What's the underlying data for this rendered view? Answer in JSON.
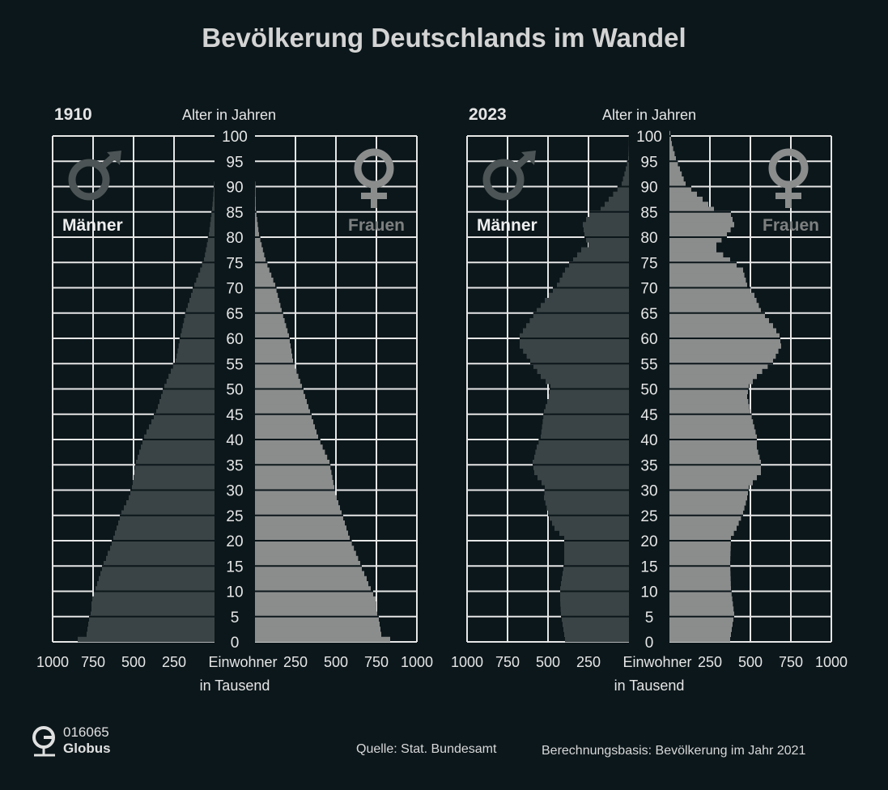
{
  "title": "Bevölkerung Deutschlands im Wandel",
  "footer": {
    "logo_code": "016065",
    "logo_name": "Globus",
    "source": "Quelle: Stat. Bundesamt",
    "basis": "Berechnungsbasis: Bevölkerung im Jahr 2021"
  },
  "colors": {
    "background": "#0c171b",
    "men": "#3a4446",
    "women": "#8b8d8d",
    "grid": "#e6e6e6"
  },
  "chart_data": [
    {
      "type": "bar",
      "orientation": "population-pyramid",
      "title": "1910",
      "ylabel": "Alter in Jahren",
      "xlabel": "Einwohner in Tausend",
      "xlabel_line1": "Einwohner",
      "xlabel_line2": "in Tausend",
      "xlim": [
        0,
        1000
      ],
      "ylim": [
        0,
        100
      ],
      "x_ticks_men": [
        "1000",
        "750",
        "500",
        "250"
      ],
      "x_ticks_women": [
        "250",
        "500",
        "750",
        "1000"
      ],
      "y_ticks": [
        "0",
        "5",
        "10",
        "15",
        "20",
        "25",
        "30",
        "35",
        "40",
        "45",
        "50",
        "55",
        "60",
        "65",
        "70",
        "75",
        "80",
        "85",
        "90",
        "95",
        "100"
      ],
      "grid": true,
      "series": [
        {
          "name": "Männer",
          "icon": "male-symbol-icon",
          "values": [
            845,
            790,
            785,
            780,
            775,
            765,
            760,
            760,
            755,
            745,
            735,
            725,
            715,
            705,
            695,
            685,
            670,
            660,
            645,
            635,
            625,
            615,
            605,
            595,
            585,
            575,
            560,
            545,
            530,
            520,
            510,
            505,
            500,
            495,
            490,
            485,
            475,
            465,
            455,
            445,
            435,
            420,
            405,
            390,
            375,
            360,
            350,
            340,
            330,
            320,
            310,
            296,
            284,
            270,
            256,
            240,
            234,
            228,
            222,
            216,
            210,
            203,
            196,
            189,
            182,
            175,
            165,
            155,
            145,
            135,
            125,
            113,
            101,
            89,
            77,
            65,
            59,
            53,
            47,
            41,
            35,
            31,
            27,
            23,
            19,
            15,
            12,
            9,
            7,
            5,
            3,
            0,
            0,
            0,
            0,
            0,
            0,
            0,
            0,
            0,
            0
          ]
        },
        {
          "name": "Frauen",
          "icon": "female-symbol-icon",
          "values": [
            835,
            780,
            775,
            770,
            765,
            755,
            750,
            750,
            745,
            730,
            715,
            700,
            690,
            675,
            660,
            650,
            637,
            624,
            611,
            598,
            585,
            575,
            565,
            555,
            545,
            535,
            525,
            515,
            505,
            495,
            490,
            484,
            478,
            472,
            466,
            460,
            446,
            432,
            418,
            404,
            390,
            380,
            370,
            360,
            350,
            340,
            330,
            320,
            310,
            300,
            290,
            279,
            268,
            257,
            246,
            235,
            230,
            225,
            220,
            215,
            210,
            201,
            192,
            183,
            174,
            165,
            157,
            149,
            141,
            133,
            125,
            113,
            101,
            89,
            77,
            65,
            57,
            49,
            41,
            33,
            25,
            21,
            17,
            13,
            9,
            5,
            4,
            4,
            3,
            3,
            2,
            0,
            0,
            0,
            0,
            0,
            0,
            0,
            0,
            0,
            0
          ]
        }
      ]
    },
    {
      "type": "bar",
      "orientation": "population-pyramid",
      "title": "2023",
      "ylabel": "Alter in Jahren",
      "xlabel": "Einwohner in Tausend",
      "xlabel_line1": "Einwohner",
      "xlabel_line2": "in Tausend",
      "xlim": [
        0,
        1000
      ],
      "ylim": [
        0,
        100
      ],
      "x_ticks_men": [
        "1000",
        "750",
        "500",
        "250"
      ],
      "x_ticks_women": [
        "250",
        "500",
        "750",
        "1000"
      ],
      "y_ticks": [
        "0",
        "5",
        "10",
        "15",
        "20",
        "25",
        "30",
        "35",
        "40",
        "45",
        "50",
        "55",
        "60",
        "65",
        "70",
        "75",
        "80",
        "85",
        "90",
        "95",
        "100"
      ],
      "grid": true,
      "series": [
        {
          "name": "Männer",
          "icon": "male-symbol-icon",
          "values": [
            395,
            400,
            405,
            410,
            415,
            420,
            422,
            424,
            425,
            425,
            425,
            420,
            415,
            410,
            405,
            400,
            400,
            400,
            400,
            400,
            400,
            430,
            460,
            475,
            490,
            500,
            508,
            516,
            525,
            522,
            520,
            540,
            565,
            585,
            590,
            595,
            585,
            578,
            570,
            558,
            545,
            541,
            537,
            533,
            529,
            525,
            515,
            505,
            495,
            490,
            485,
            515,
            545,
            567,
            590,
            610,
            632,
            654,
            675,
            675,
            675,
            655,
            635,
            613,
            591,
            570,
            545,
            520,
            495,
            470,
            445,
            428,
            411,
            395,
            370,
            345,
            320,
            295,
            250,
            265,
            275,
            280,
            285,
            265,
            245,
            175,
            150,
            125,
            98,
            71,
            45,
            37,
            28,
            20,
            12,
            5,
            3,
            2,
            1,
            1,
            0
          ]
        },
        {
          "name": "Frauen",
          "icon": "female-symbol-icon",
          "values": [
            375,
            380,
            385,
            390,
            395,
            400,
            396,
            392,
            388,
            384,
            380,
            379,
            378,
            377,
            376,
            375,
            376,
            377,
            378,
            379,
            380,
            398,
            415,
            428,
            442,
            455,
            463,
            472,
            480,
            485,
            490,
            515,
            540,
            565,
            565,
            565,
            557,
            548,
            540,
            540,
            540,
            532,
            524,
            516,
            508,
            500,
            493,
            487,
            480,
            485,
            490,
            515,
            540,
            573,
            607,
            640,
            657,
            673,
            690,
            685,
            680,
            660,
            640,
            615,
            590,
            565,
            552,
            538,
            525,
            502,
            480,
            472,
            463,
            455,
            415,
            375,
            332,
            290,
            290,
            322,
            355,
            378,
            400,
            390,
            380,
            275,
            240,
            205,
            170,
            135,
            100,
            88,
            76,
            65,
            52,
            40,
            32,
            23,
            15,
            10,
            5
          ]
        }
      ]
    }
  ]
}
